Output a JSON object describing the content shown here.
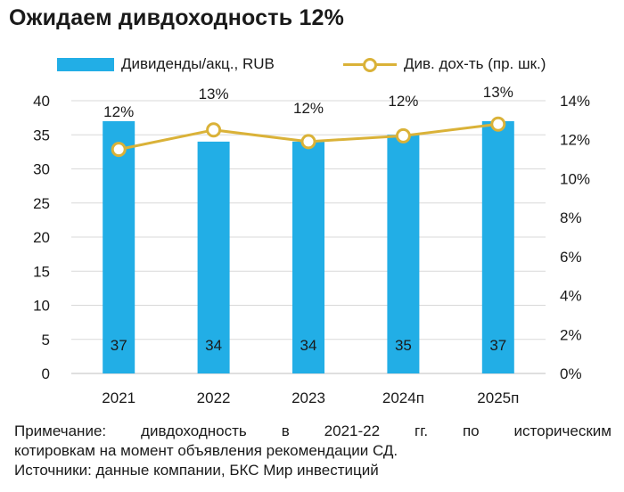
{
  "title": "Ожидаем дивдоходность 12%",
  "legend": {
    "bars_label": "Дивиденды/акц., RUB",
    "line_label": "Див. дох-ть (пр. шк.)"
  },
  "notes": {
    "line1": "Примечание: дивдоходность в 2021-22 гг. по историческим",
    "line2": "котировкам на момент объявления рекомендации СД.",
    "line3": "Источники: данные компании, БКС Мир инвестиций"
  },
  "colors": {
    "bars": "#22aee6",
    "line": "#dab238",
    "grid": "#d9d9d9"
  },
  "chart_data": {
    "type": "bar",
    "categories": [
      "2021",
      "2022",
      "2023",
      "2024п",
      "2025п"
    ],
    "series": [
      {
        "name": "Дивиденды/акц., RUB",
        "type": "bar",
        "axis": "left",
        "values": [
          37,
          34,
          34,
          35,
          37
        ],
        "labels": [
          "37",
          "34",
          "34",
          "35",
          "37"
        ]
      },
      {
        "name": "Див. дох-ть (пр. шк.)",
        "type": "line",
        "axis": "right",
        "values": [
          11.5,
          12.5,
          11.9,
          12.2,
          12.8
        ],
        "labels": [
          "12%",
          "13%",
          "12%",
          "12%",
          "13%"
        ]
      }
    ],
    "y_left": {
      "min": 0,
      "max": 40,
      "ticks": [
        0,
        5,
        10,
        15,
        20,
        25,
        30,
        35,
        40
      ],
      "tick_labels": [
        "0",
        "5",
        "10",
        "15",
        "20",
        "25",
        "30",
        "35",
        "40"
      ]
    },
    "y_right": {
      "min": 0,
      "max": 14,
      "ticks": [
        0,
        2,
        4,
        6,
        8,
        10,
        12,
        14
      ],
      "tick_labels": [
        "0%",
        "2%",
        "4%",
        "6%",
        "8%",
        "10%",
        "12%",
        "14%"
      ]
    },
    "grid": true,
    "legend_position": "top"
  }
}
